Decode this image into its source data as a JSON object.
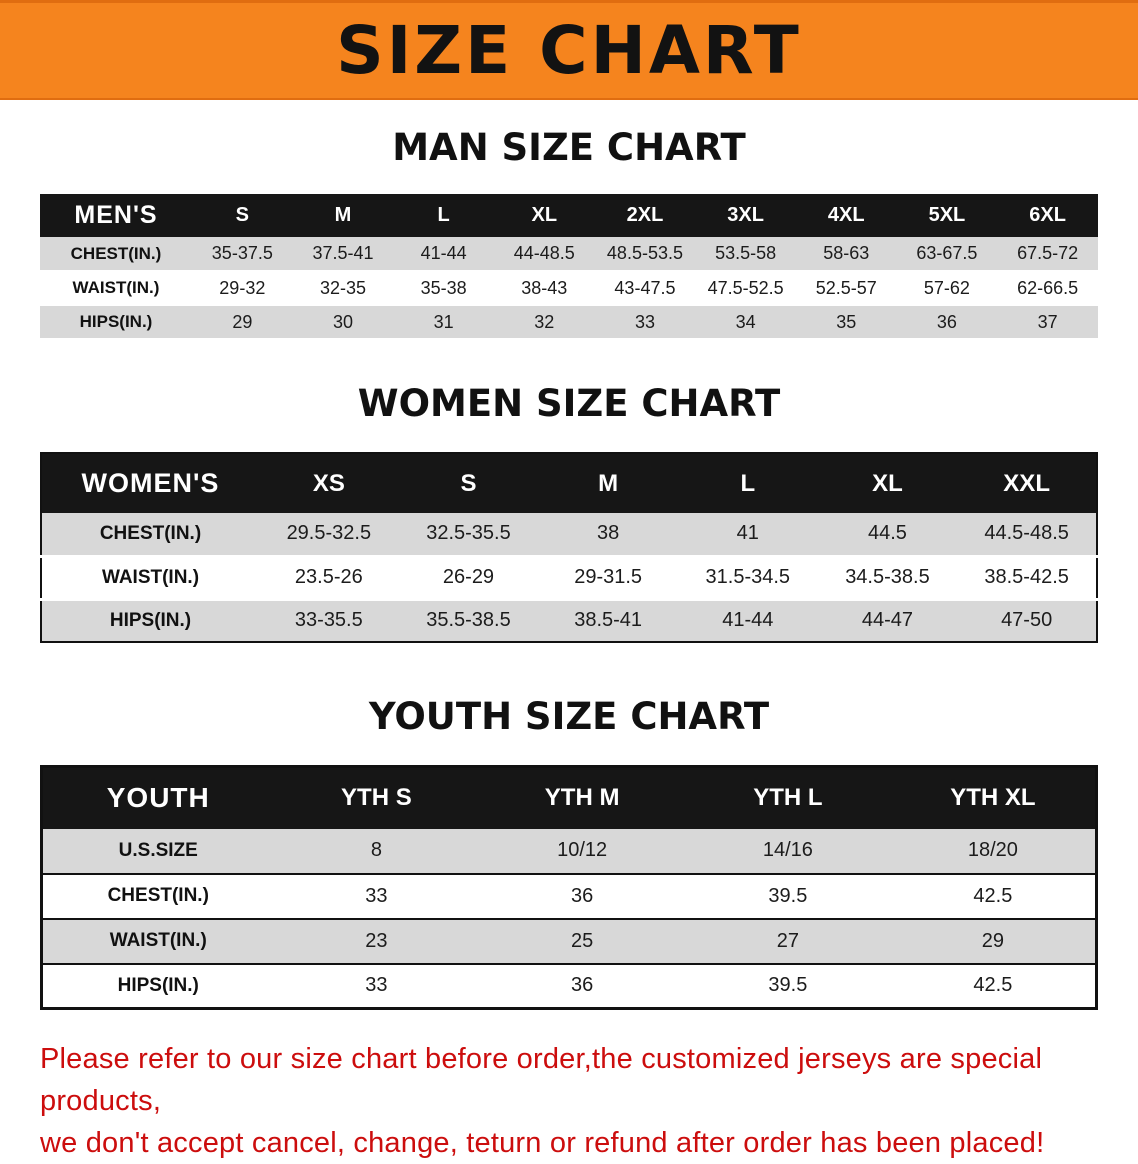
{
  "banner": {
    "title": "SIZE CHART"
  },
  "sections": [
    {
      "heading": "MAN SIZE CHART",
      "table": {
        "header": [
          "MEN'S",
          "S",
          "M",
          "L",
          "XL",
          "2XL",
          "3XL",
          "4XL",
          "5XL",
          "6XL"
        ],
        "rows": [
          [
            "CHEST(IN.)",
            "35-37.5",
            "37.5-41",
            "41-44",
            "44-48.5",
            "48.5-53.5",
            "53.5-58",
            "58-63",
            "63-67.5",
            "67.5-72"
          ],
          [
            "WAIST(IN.)",
            "29-32",
            "32-35",
            "35-38",
            "38-43",
            "43-47.5",
            "47.5-52.5",
            "52.5-57",
            "57-62",
            "62-66.5"
          ],
          [
            "HIPS(IN.)",
            "29",
            "30",
            "31",
            "32",
            "33",
            "34",
            "35",
            "36",
            "37"
          ]
        ]
      }
    },
    {
      "heading": "WOMEN SIZE CHART",
      "table": {
        "header": [
          "WOMEN'S",
          "XS",
          "S",
          "M",
          "L",
          "XL",
          "XXL"
        ],
        "rows": [
          [
            "CHEST(IN.)",
            "29.5-32.5",
            "32.5-35.5",
            "38",
            "41",
            "44.5",
            "44.5-48.5"
          ],
          [
            "WAIST(IN.)",
            "23.5-26",
            "26-29",
            "29-31.5",
            "31.5-34.5",
            "34.5-38.5",
            "38.5-42.5"
          ],
          [
            "HIPS(IN.)",
            "33-35.5",
            "35.5-38.5",
            "38.5-41",
            "41-44",
            "44-47",
            "47-50"
          ]
        ]
      }
    },
    {
      "heading": "YOUTH SIZE CHART",
      "table": {
        "header": [
          "YOUTH",
          "YTH S",
          "YTH M",
          "YTH L",
          "YTH XL"
        ],
        "rows": [
          [
            "U.S.SIZE",
            "8",
            "10/12",
            "14/16",
            "18/20"
          ],
          [
            "CHEST(IN.)",
            "33",
            "36",
            "39.5",
            "42.5"
          ],
          [
            "WAIST(IN.)",
            "23",
            "25",
            "27",
            "29"
          ],
          [
            "HIPS(IN.)",
            "33",
            "36",
            "39.5",
            "42.5"
          ]
        ]
      }
    }
  ],
  "footer": {
    "line1": "Please refer to our size chart before order,the customized jerseys are special products,",
    "line2": "we don't accept cancel, change, teturn or refund after order has been placed!"
  },
  "colors": {
    "banner_bg": "#f5841e",
    "table_header_bg": "#161616",
    "row_alt_bg": "#d8d8d8",
    "notice_text": "#cc0d0d"
  }
}
